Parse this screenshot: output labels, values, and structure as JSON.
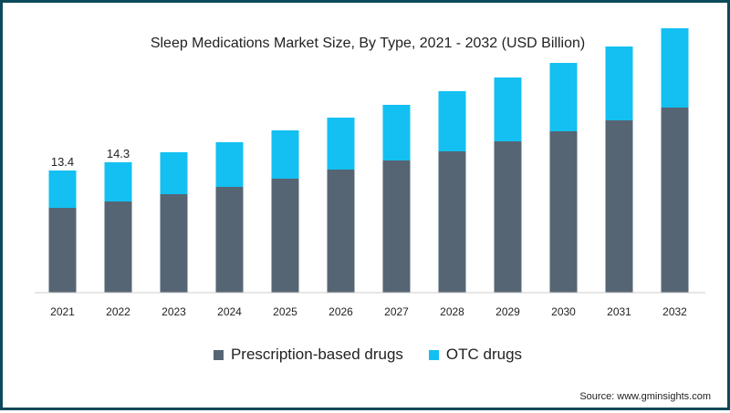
{
  "chart_data": {
    "type": "bar",
    "stacked": true,
    "title": "Sleep Medications Market Size, By Type, 2021 - 2032 (USD Billion)",
    "categories": [
      "2021",
      "2022",
      "2023",
      "2024",
      "2025",
      "2026",
      "2027",
      "2028",
      "2029",
      "2030",
      "2031",
      "2032"
    ],
    "series": [
      {
        "name": "Prescription-based drugs",
        "color": "#566573",
        "values": [
          9.3,
          10.0,
          10.8,
          11.6,
          12.5,
          13.5,
          14.5,
          15.5,
          16.6,
          17.7,
          18.9,
          20.3
        ]
      },
      {
        "name": "OTC drugs",
        "color": "#13c0f1",
        "values": [
          4.1,
          4.3,
          4.6,
          4.9,
          5.3,
          5.7,
          6.1,
          6.6,
          7.0,
          7.5,
          8.1,
          8.7
        ]
      }
    ],
    "data_labels": [
      "13.4",
      "14.3"
    ],
    "ylim": [
      0,
      30
    ],
    "grid": false,
    "legend": "bottom"
  },
  "source": "Source: www.gminsights.com"
}
